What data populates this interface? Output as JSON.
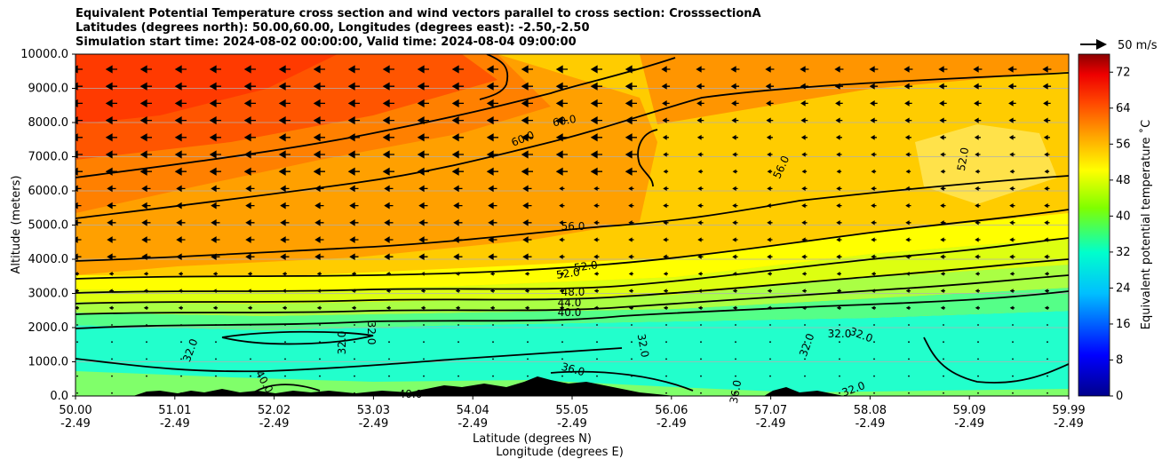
{
  "chart_data": {
    "type": "heatmap",
    "title": [
      "Equivalent Potential Temperature cross section and wind vectors parallel to cross section: CrosssectionA",
      "Latitudes (degrees north): 50.00,60.00, Longitudes (degrees east): -2.50,-2.50",
      "Simulation start time: 2024-08-02 00:00:00, Valid time: 2024-08-04 09:00:00"
    ],
    "ylabel": "Altitude (meters)",
    "xlabel": "Latitude (degrees N)",
    "xlabel2": "Longitude (degrees E)",
    "ylim": [
      0,
      10000
    ],
    "xlim": [
      50.0,
      59.99
    ],
    "y_ticks": [
      "0.0",
      "1000.0",
      "2000.0",
      "3000.0",
      "4000.0",
      "5000.0",
      "6000.0",
      "7000.0",
      "8000.0",
      "9000.0",
      "10000.0"
    ],
    "x_ticks": [
      {
        "lat": "50.00",
        "lon": "-2.49"
      },
      {
        "lat": "51.01",
        "lon": "-2.49"
      },
      {
        "lat": "52.02",
        "lon": "-2.49"
      },
      {
        "lat": "53.03",
        "lon": "-2.49"
      },
      {
        "lat": "54.04",
        "lon": "-2.49"
      },
      {
        "lat": "55.05",
        "lon": "-2.49"
      },
      {
        "lat": "56.06",
        "lon": "-2.49"
      },
      {
        "lat": "57.07",
        "lon": "-2.49"
      },
      {
        "lat": "58.08",
        "lon": "-2.49"
      },
      {
        "lat": "59.09",
        "lon": "-2.49"
      },
      {
        "lat": "59.99",
        "lon": "-2.49"
      }
    ],
    "colorbar": {
      "label": "Equivalent potential temperature ˚C",
      "range": [
        0,
        76
      ],
      "ticks": [
        "0",
        "8",
        "16",
        "24",
        "32",
        "40",
        "48",
        "56",
        "64",
        "72"
      ]
    },
    "wind_key": "50 m/s",
    "grid": "horizontal",
    "contour_labels": [
      "60.0",
      "60.0",
      "56.0",
      "56.0",
      "52.0",
      "52.0",
      "52.0",
      "48.0",
      "44.0",
      "40.0",
      "32.0",
      "32.0",
      "32.0",
      "32.0",
      "32.0",
      "32.0",
      "32.0",
      "36.0",
      "40.0",
      "40.0",
      "36.0",
      "32.0"
    ]
  }
}
